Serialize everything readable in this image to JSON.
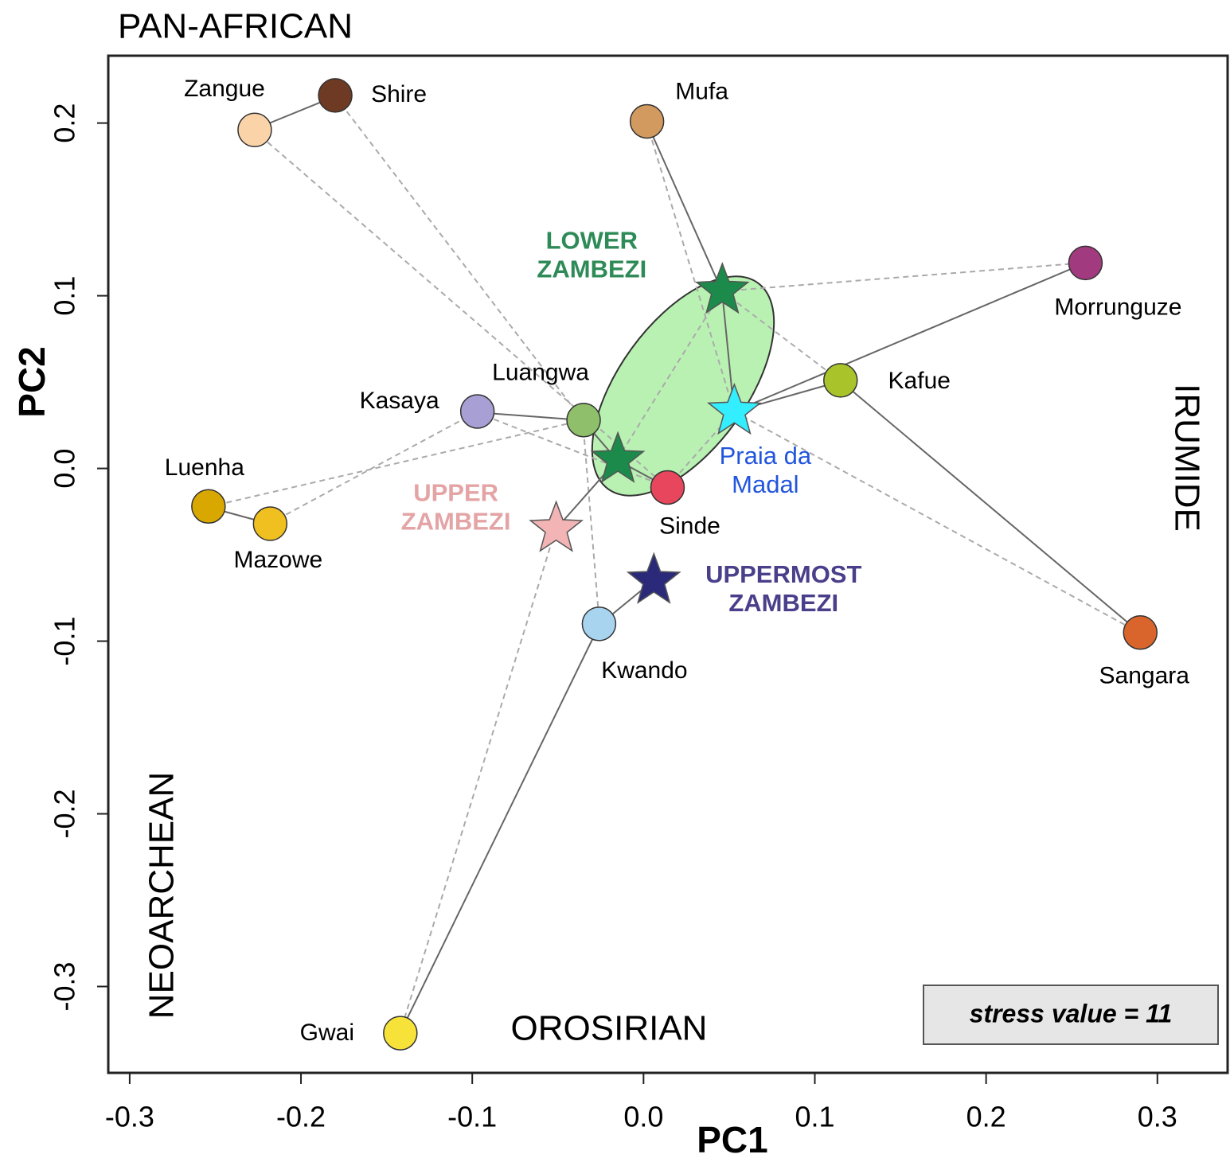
{
  "chart_data": {
    "type": "scatter",
    "x_label": "PC1",
    "y_label": "PC2",
    "xlim": [
      -0.3125,
      0.341
    ],
    "ylim": [
      -0.35,
      0.239
    ],
    "xticks": [
      -0.3,
      -0.2,
      -0.1,
      {
        "value": 0,
        "label": "0.0"
      },
      0.1,
      0.2,
      0.3
    ],
    "yticks": [
      -0.3,
      -0.2,
      -0.1,
      {
        "value": 0,
        "label": "0.0"
      },
      0.1,
      0.2
    ],
    "regions": [
      "PAN-AFRICAN",
      "IRUMIDE",
      "NEOARCHEAN",
      "OROSIRIAN"
    ],
    "note": "stress value = 11",
    "points": [
      {
        "label": "Shire",
        "x": -0.18,
        "y": 0.216,
        "color": "#6e3a24"
      },
      {
        "label": "Zangue",
        "x": -0.227,
        "y": 0.196,
        "color": "#fbd3a8"
      },
      {
        "label": "Mufa",
        "x": 0.002,
        "y": 0.201,
        "color": "#d29a5e"
      },
      {
        "label": "Morrunguze",
        "x": 0.258,
        "y": 0.119,
        "color": "#a23a80"
      },
      {
        "label": "Kafue",
        "x": 0.115,
        "y": 0.051,
        "color": "#a8c42a"
      },
      {
        "label": "Kasaya",
        "x": -0.097,
        "y": 0.033,
        "color": "#a8a0d4"
      },
      {
        "label": "Luangwa",
        "x": -0.035,
        "y": 0.028,
        "color": "#8fbf6a"
      },
      {
        "label": "Sinde",
        "x": 0.014,
        "y": -0.011,
        "color": "#e8465c"
      },
      {
        "label": "Luenha",
        "x": -0.254,
        "y": -0.022,
        "color": "#d9a800"
      },
      {
        "label": "Mazowe",
        "x": -0.218,
        "y": -0.032,
        "color": "#f0c020"
      },
      {
        "label": "Kwando",
        "x": -0.026,
        "y": -0.09,
        "color": "#a9d4f0"
      },
      {
        "label": "Sangara",
        "x": 0.29,
        "y": -0.095,
        "color": "#d9652c"
      },
      {
        "label": "Gwai",
        "x": -0.142,
        "y": -0.327,
        "color": "#f7e23a"
      }
    ],
    "stars": [
      {
        "label": [
          "LOWER",
          "ZAMBEZI"
        ],
        "x": 0.046,
        "y": 0.103,
        "color": "#1b8a4a",
        "label_color": "#2e8b57"
      },
      {
        "x": -0.015,
        "y": 0.005,
        "color": "#1b8a4a"
      },
      {
        "label": [
          "Praia da",
          "Madal"
        ],
        "x": 0.053,
        "y": 0.033,
        "color": "#33eeff",
        "label_color": "#2255dd"
      },
      {
        "label": [
          "UPPER",
          "ZAMBEZI"
        ],
        "x": -0.051,
        "y": -0.035,
        "color": "#f2b4b4",
        "label_color": "#e4a4a6"
      },
      {
        "label": [
          "UPPERMOST",
          "ZAMBEZI"
        ],
        "x": 0.006,
        "y": -0.065,
        "color": "#2b2a7a",
        "label_color": "#4a3f8a"
      }
    ]
  }
}
